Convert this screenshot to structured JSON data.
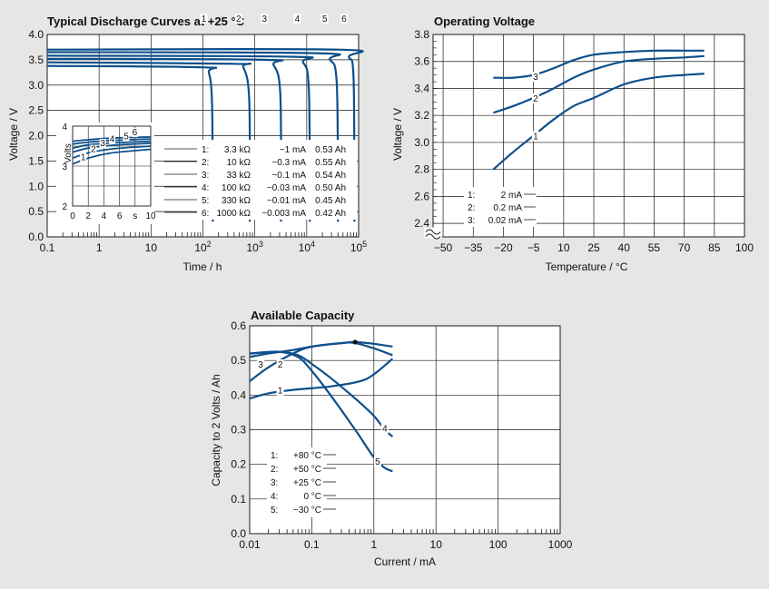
{
  "chart_data": [
    {
      "id": "discharge",
      "type": "line",
      "title": "Typical Discharge Curves at +25 °C",
      "xlabel": "Time / h",
      "ylabel": "Voltage / V",
      "xscale": "log",
      "xlim": [
        0.1,
        100000
      ],
      "ylim": [
        0,
        4.0
      ],
      "xticks": [
        {
          "v": 0.1,
          "label": "0.1"
        },
        {
          "v": 1,
          "label": "1"
        },
        {
          "v": 10,
          "label": "10"
        },
        {
          "v": 100,
          "label": "10",
          "sup": "2"
        },
        {
          "v": 1000,
          "label": "10",
          "sup": "3"
        },
        {
          "v": 10000,
          "label": "10",
          "sup": "4"
        },
        {
          "v": 100000,
          "label": "10",
          "sup": "5"
        }
      ],
      "yticks": [
        "0.0",
        "0.5",
        "1.0",
        "1.5",
        "2.0",
        "2.5",
        "3.0",
        "3.5",
        "4.0"
      ],
      "grid": true,
      "series": [
        {
          "name": "1",
          "x": [
            0.1,
            100,
            130,
            150,
            155
          ],
          "y": [
            3.38,
            3.35,
            3.25,
            2.6,
            0.3
          ]
        },
        {
          "name": "2",
          "x": [
            0.1,
            400,
            600,
            780,
            800
          ],
          "y": [
            3.45,
            3.42,
            3.35,
            2.7,
            0.3
          ]
        },
        {
          "name": "3",
          "x": [
            0.1,
            1500,
            2300,
            3100,
            3200
          ],
          "y": [
            3.52,
            3.5,
            3.4,
            2.8,
            0.3
          ]
        },
        {
          "name": "4",
          "x": [
            0.1,
            5000,
            8500,
            11000,
            11500
          ],
          "y": [
            3.58,
            3.56,
            3.45,
            2.9,
            0.3
          ]
        },
        {
          "name": "5",
          "x": [
            0.1,
            15000,
            28000,
            38000,
            40000
          ],
          "y": [
            3.65,
            3.63,
            3.5,
            3.0,
            0.3
          ]
        },
        {
          "name": "6",
          "x": [
            0.1,
            40000,
            65000,
            80000,
            83000
          ],
          "y": [
            3.7,
            3.7,
            3.55,
            3.1,
            0.3
          ]
        }
      ],
      "series_labels": [
        {
          "name": "1",
          "x": 150,
          "y": 2.6
        },
        {
          "name": "2",
          "x": 700,
          "y": 2.6
        },
        {
          "name": "3",
          "x": 2200,
          "y": 2.6
        },
        {
          "name": "4",
          "x": 9500,
          "y": 2.6
        },
        {
          "name": "5",
          "x": 32000,
          "y": 2.6
        },
        {
          "name": "6",
          "x": 75000,
          "y": 2.6
        }
      ],
      "legend_placement": "lower-right",
      "legend": [
        {
          "n": "1:",
          "r": "3.3 kΩ",
          "i": "~1 mA",
          "c": "0.53 Ah"
        },
        {
          "n": "2:",
          "r": "10 kΩ",
          "i": "~0.3 mA",
          "c": "0.55 Ah"
        },
        {
          "n": "3:",
          "r": "33 kΩ",
          "i": "~0.1 mA",
          "c": "0.54 Ah"
        },
        {
          "n": "4:",
          "r": "100 kΩ",
          "i": "~0.03 mA",
          "c": "0.50 Ah"
        },
        {
          "n": "5:",
          "r": "330 kΩ",
          "i": "~0.01 mA",
          "c": "0.45 Ah"
        },
        {
          "n": "6:",
          "r": "1000 kΩ",
          "i": "~0.003 mA",
          "c": "0.42 Ah"
        }
      ],
      "inset": {
        "ylabel": "Volts",
        "xlabel_unit": "s",
        "xlim": [
          0,
          10
        ],
        "ylim": [
          2,
          4
        ],
        "xticks": [
          "0",
          "2",
          "4",
          "6",
          "s",
          "10"
        ],
        "yticks": [
          {
            "v": 4,
            "label": "4"
          },
          {
            "v": 3,
            "label": "3"
          },
          {
            "v": 2,
            "label": "2"
          }
        ],
        "series": [
          {
            "name": "1",
            "x": [
              0,
              2,
              5,
              10
            ],
            "y": [
              3.05,
              3.2,
              3.33,
              3.42
            ]
          },
          {
            "name": "2",
            "x": [
              0,
              2,
              5,
              10
            ],
            "y": [
              3.2,
              3.33,
              3.43,
              3.5
            ]
          },
          {
            "name": "3",
            "x": [
              0,
              2,
              5,
              10
            ],
            "y": [
              3.35,
              3.45,
              3.52,
              3.57
            ]
          },
          {
            "name": "4",
            "x": [
              0,
              2,
              5,
              10
            ],
            "y": [
              3.45,
              3.53,
              3.58,
              3.62
            ]
          },
          {
            "name": "5",
            "x": [
              0,
              2,
              5,
              10
            ],
            "y": [
              3.55,
              3.6,
              3.64,
              3.68
            ]
          },
          {
            "name": "6",
            "x": [
              0,
              2,
              5,
              10
            ],
            "y": [
              3.62,
              3.66,
              3.7,
              3.73
            ]
          }
        ],
        "series_labels": [
          {
            "name": "1",
            "x": 1.3,
            "y": 3.15
          },
          {
            "name": "2",
            "x": 2.6,
            "y": 3.35
          },
          {
            "name": "3",
            "x": 3.8,
            "y": 3.5
          },
          {
            "name": "4",
            "x": 5.0,
            "y": 3.6
          },
          {
            "name": "5",
            "x": 6.8,
            "y": 3.67
          },
          {
            "name": "6",
            "x": 7.9,
            "y": 3.77
          }
        ]
      }
    },
    {
      "id": "operating",
      "type": "line",
      "title": "Operating Voltage",
      "xlabel": "Temperature / °C",
      "ylabel": "Voltage / V",
      "xticks": [
        "−50",
        "−35",
        "−20",
        "−5",
        "10",
        "25",
        "40",
        "55",
        "70",
        "85",
        "100"
      ],
      "xtick_values": [
        -50,
        -35,
        -20,
        -5,
        10,
        25,
        40,
        55,
        70,
        85,
        100
      ],
      "xlim": [
        -55,
        100
      ],
      "ylim": [
        2.3,
        3.8
      ],
      "y_axis_break": true,
      "yticks": [
        "2.4",
        "2.6",
        "2.8",
        "3.0",
        "3.2",
        "3.4",
        "3.6",
        "3.8"
      ],
      "ytick_values": [
        2.4,
        2.6,
        2.8,
        3.0,
        3.2,
        3.4,
        3.6,
        3.8
      ],
      "grid": true,
      "series": [
        {
          "name": "1",
          "x": [
            -25,
            -15,
            -5,
            5,
            15,
            25,
            40,
            55,
            70,
            80
          ],
          "y": [
            2.8,
            2.93,
            3.05,
            3.17,
            3.27,
            3.33,
            3.43,
            3.48,
            3.5,
            3.51
          ]
        },
        {
          "name": "2",
          "x": [
            -25,
            -15,
            -5,
            5,
            15,
            25,
            40,
            55,
            70,
            80
          ],
          "y": [
            3.22,
            3.27,
            3.33,
            3.4,
            3.48,
            3.54,
            3.6,
            3.62,
            3.63,
            3.64
          ]
        },
        {
          "name": "3",
          "x": [
            -25,
            -15,
            -5,
            5,
            15,
            25,
            40,
            55,
            70,
            80
          ],
          "y": [
            3.48,
            3.48,
            3.5,
            3.55,
            3.61,
            3.65,
            3.67,
            3.68,
            3.68,
            3.68
          ]
        }
      ],
      "series_labels": [
        {
          "name": "1",
          "x": -4,
          "y": 3.05
        },
        {
          "name": "2",
          "x": -4,
          "y": 3.33
        },
        {
          "name": "3",
          "x": -4,
          "y": 3.49
        }
      ],
      "legend_placement": "lower-left",
      "legend": [
        {
          "n": "1:",
          "v": "2 mA"
        },
        {
          "n": "2:",
          "v": "0.2 mA"
        },
        {
          "n": "3:",
          "v": "0.02 mA"
        }
      ]
    },
    {
      "id": "capacity",
      "type": "line",
      "title": "Available Capacity",
      "xlabel": "Current / mA",
      "ylabel": "Capacity to 2 Volts / Ah",
      "xscale": "log",
      "xlim": [
        0.01,
        1000
      ],
      "ylim": [
        0,
        0.6
      ],
      "xticks": [
        "0.01",
        "0.1",
        "1",
        "10",
        "100",
        "1000"
      ],
      "xtick_values": [
        0.01,
        0.1,
        1,
        10,
        100,
        1000
      ],
      "yticks": [
        "0.0",
        "0.1",
        "0.2",
        "0.3",
        "0.4",
        "0.5",
        "0.6"
      ],
      "grid": true,
      "series": [
        {
          "name": "1",
          "x": [
            0.01,
            0.02,
            0.05,
            0.2,
            0.6,
            1,
            2
          ],
          "y": [
            0.39,
            0.405,
            0.415,
            0.425,
            0.44,
            0.46,
            0.505
          ]
        },
        {
          "name": "2",
          "x": [
            0.01,
            0.02,
            0.05,
            0.1,
            0.3,
            0.5,
            1,
            2
          ],
          "y": [
            0.44,
            0.48,
            0.52,
            0.54,
            0.55,
            0.553,
            0.548,
            0.54
          ]
        },
        {
          "name": "3",
          "x": [
            0.01,
            0.02,
            0.05,
            0.1,
            0.3,
            0.5,
            1,
            2
          ],
          "y": [
            0.51,
            0.52,
            0.53,
            0.54,
            0.55,
            0.55,
            0.535,
            0.515
          ]
        },
        {
          "name": "4",
          "x": [
            0.01,
            0.03,
            0.06,
            0.1,
            0.2,
            0.5,
            1,
            1.5,
            2
          ],
          "y": [
            0.52,
            0.525,
            0.515,
            0.49,
            0.45,
            0.39,
            0.34,
            0.3,
            0.28
          ]
        },
        {
          "name": "5",
          "x": [
            0.01,
            0.03,
            0.06,
            0.1,
            0.2,
            0.5,
            1,
            1.5,
            2
          ],
          "y": [
            0.52,
            0.525,
            0.51,
            0.47,
            0.4,
            0.3,
            0.22,
            0.19,
            0.18
          ]
        }
      ],
      "marker": {
        "x": 0.5,
        "y": 0.553
      },
      "series_labels": [
        {
          "name": "1",
          "x": 0.031,
          "y": 0.415
        },
        {
          "name": "2",
          "x": 0.031,
          "y": 0.49
        },
        {
          "name": "3",
          "x": 0.015,
          "y": 0.49
        },
        {
          "name": "4",
          "x": 1.5,
          "y": 0.305
        },
        {
          "name": "5",
          "x": 1.15,
          "y": 0.21
        }
      ],
      "legend_placement": "lower-left",
      "legend": [
        {
          "n": "1:",
          "v": "+80 °C"
        },
        {
          "n": "2:",
          "v": "+50 °C"
        },
        {
          "n": "3:",
          "v": "+25 °C"
        },
        {
          "n": "4:",
          "v": "0 °C"
        },
        {
          "n": "5:",
          "v": "−30 °C"
        }
      ]
    }
  ],
  "style": {
    "curve_color": "#0d4f8b",
    "grid_color": "#1a1a1a",
    "plot_bg": "#ffffff",
    "page_bg": "#e6e6e4"
  }
}
